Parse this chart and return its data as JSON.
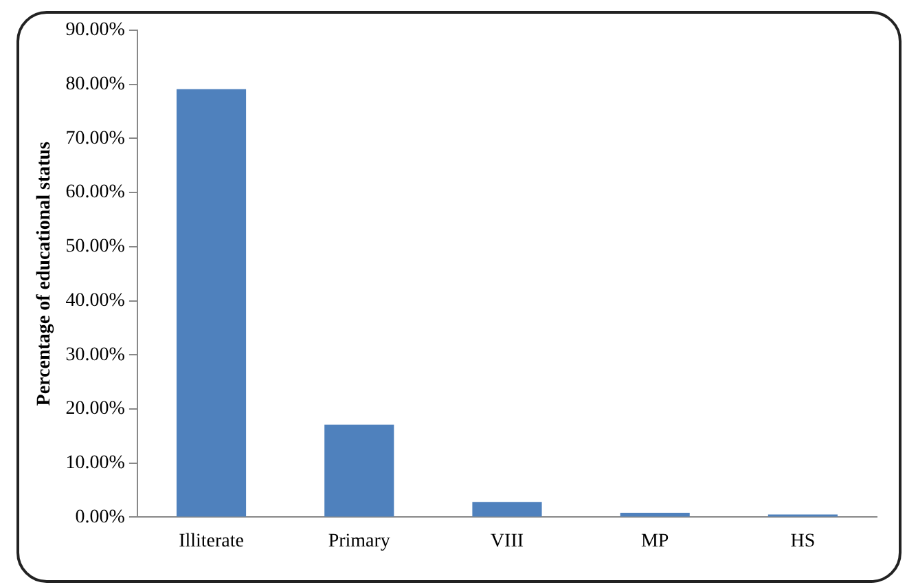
{
  "chart_data": {
    "type": "bar",
    "ylabel": "Percentage of educational status",
    "categories": [
      "Illiterate",
      "Primary",
      "VIII",
      "MP",
      "HS"
    ],
    "values": [
      79.1,
      17.1,
      2.8,
      0.8,
      0.5
    ],
    "color": "#4f81bd",
    "ylim": [
      0,
      90
    ],
    "yticks": [
      {
        "value": 0,
        "label": "0.00%"
      },
      {
        "value": 10,
        "label": "10.00%"
      },
      {
        "value": 20,
        "label": "20.00%"
      },
      {
        "value": 30,
        "label": "30.00%"
      },
      {
        "value": 40,
        "label": "40.00%"
      },
      {
        "value": 50,
        "label": "50.00%"
      },
      {
        "value": 60,
        "label": "60.00%"
      },
      {
        "value": 70,
        "label": "70.00%"
      },
      {
        "value": 80,
        "label": "80.00%"
      },
      {
        "value": 90,
        "label": "90.00%"
      }
    ],
    "grid": false,
    "legend": false
  }
}
